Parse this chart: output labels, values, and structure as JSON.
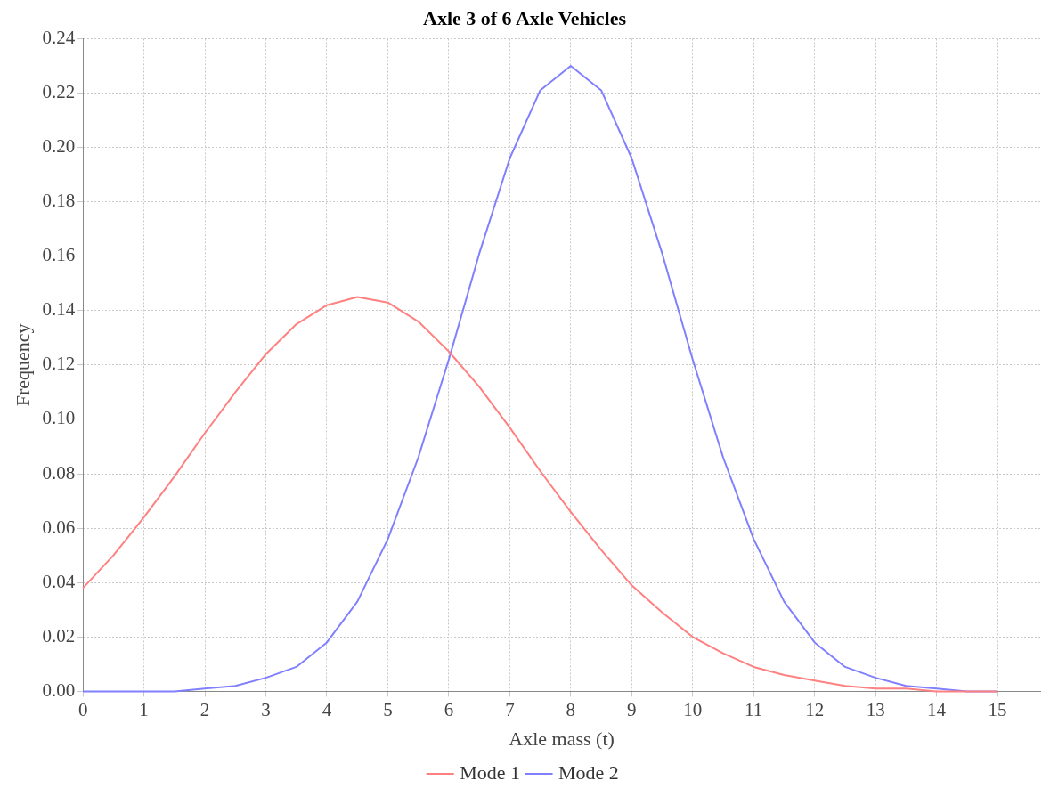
{
  "chart_data": {
    "type": "line",
    "title": "Axle 3 of 6 Axle Vehicles",
    "xlabel": "Axle mass (t)",
    "ylabel": "Frequency",
    "x": [
      0,
      0.5,
      1,
      1.5,
      2,
      2.5,
      3,
      3.5,
      4,
      4.5,
      5,
      5.5,
      6,
      6.5,
      7,
      7.5,
      8,
      8.5,
      9,
      9.5,
      10,
      10.5,
      11,
      11.5,
      12,
      12.5,
      13,
      13.5,
      14,
      14.5,
      15
    ],
    "series": [
      {
        "name": "Mode 1",
        "color": "#ff8080",
        "values": [
          0.038,
          0.05,
          0.064,
          0.079,
          0.095,
          0.11,
          0.124,
          0.135,
          0.142,
          0.145,
          0.143,
          0.136,
          0.125,
          0.112,
          0.097,
          0.081,
          0.066,
          0.052,
          0.039,
          0.029,
          0.02,
          0.014,
          0.009,
          0.006,
          0.004,
          0.002,
          0.001,
          0.001,
          0,
          0,
          0
        ]
      },
      {
        "name": "Mode 2",
        "color": "#8080ff",
        "values": [
          0,
          0,
          0,
          0,
          0.001,
          0.002,
          0.005,
          0.009,
          0.018,
          0.033,
          0.056,
          0.086,
          0.122,
          0.161,
          0.196,
          0.221,
          0.23,
          0.221,
          0.196,
          0.161,
          0.122,
          0.086,
          0.056,
          0.033,
          0.018,
          0.009,
          0.005,
          0.002,
          0.001,
          0,
          0
        ]
      }
    ],
    "xlim": [
      0,
      15.7
    ],
    "xticks": [
      0,
      1,
      2,
      3,
      4,
      5,
      6,
      7,
      8,
      9,
      10,
      11,
      12,
      13,
      14,
      15
    ],
    "ylim": [
      0,
      0.24
    ],
    "yticks": [
      {
        "value": 0,
        "label": "0.00"
      },
      {
        "value": 0.02,
        "label": "0.02"
      },
      {
        "value": 0.04,
        "label": "0.04"
      },
      {
        "value": 0.06,
        "label": "0.06"
      },
      {
        "value": 0.08,
        "label": "0.08"
      },
      {
        "value": 0.1,
        "label": "0.10"
      },
      {
        "value": 0.12,
        "label": "0.12"
      },
      {
        "value": 0.14,
        "label": "0.14"
      },
      {
        "value": 0.16,
        "label": "0.16"
      },
      {
        "value": 0.18,
        "label": "0.18"
      },
      {
        "value": 0.2,
        "label": "0.20"
      },
      {
        "value": 0.22,
        "label": "0.22"
      },
      {
        "value": 0.24,
        "label": "0.24"
      }
    ],
    "grid": true,
    "legend": "bottom",
    "marker": "none",
    "line_style": "solid"
  }
}
